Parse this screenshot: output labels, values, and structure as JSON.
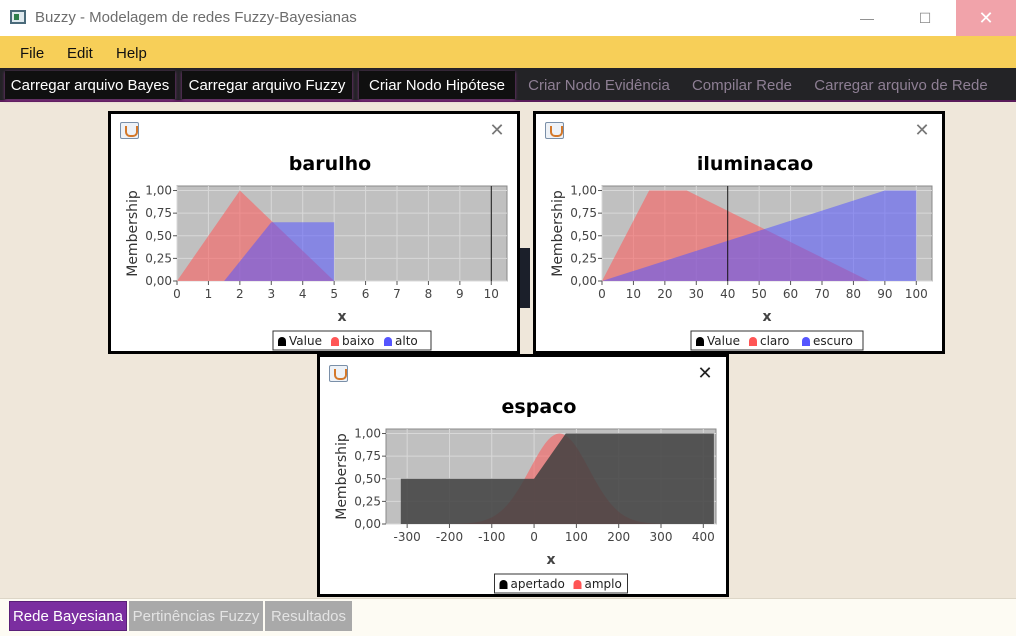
{
  "window": {
    "title": "Buzzy - Modelagem de redes Fuzzy-Bayesianas",
    "minimize": "—",
    "maximize": "☐",
    "close": "✕"
  },
  "menu": [
    {
      "label": "File"
    },
    {
      "label": "Edit"
    },
    {
      "label": "Help"
    }
  ],
  "toolbar": [
    {
      "label": "Carregar arquivo Bayes",
      "enabled": true
    },
    {
      "label": "Carregar arquivo Fuzzy",
      "enabled": true
    },
    {
      "label": "Criar Nodo Hipótese",
      "enabled": true
    },
    {
      "label": "Criar Nodo Evidência",
      "enabled": false
    },
    {
      "label": "Compilar Rede",
      "enabled": false
    },
    {
      "label": "Carregar arquivo de Rede",
      "enabled": false
    }
  ],
  "tabs": [
    {
      "label": "Rede Bayesiana",
      "active": true
    },
    {
      "label": "Pertinências Fuzzy",
      "active": false
    },
    {
      "label": "Resultados",
      "active": false
    }
  ],
  "chart_data": [
    {
      "type": "area",
      "title": "barulho",
      "xlabel": "x",
      "ylabel": "Membership",
      "xlim": [
        0,
        10.5
      ],
      "ylim": [
        0,
        1.05
      ],
      "x_ticks": [
        "0",
        "1",
        "2",
        "3",
        "4",
        "5",
        "6",
        "7",
        "8",
        "9",
        "10"
      ],
      "y_ticks": [
        "0,00",
        "0,25",
        "0,50",
        "0,75",
        "1,00"
      ],
      "value_line": 10,
      "legend": [
        "Value",
        "baixo",
        "alto"
      ],
      "series": [
        {
          "name": "baixo",
          "color": "#ff5555",
          "x": [
            0,
            2,
            5
          ],
          "y": [
            0,
            1,
            0
          ]
        },
        {
          "name": "alto",
          "color": "#5555ff",
          "x": [
            1.5,
            3,
            5,
            5
          ],
          "y": [
            0,
            0.65,
            0.65,
            0
          ]
        }
      ]
    },
    {
      "type": "area",
      "title": "iluminacao",
      "xlabel": "x",
      "ylabel": "Membership",
      "xlim": [
        0,
        105
      ],
      "ylim": [
        0,
        1.05
      ],
      "x_ticks": [
        "0",
        "10",
        "20",
        "30",
        "40",
        "50",
        "60",
        "70",
        "80",
        "90",
        "100"
      ],
      "y_ticks": [
        "0,00",
        "0,25",
        "0,50",
        "0,75",
        "1,00"
      ],
      "value_line": 40,
      "legend": [
        "Value",
        "claro",
        "escuro"
      ],
      "series": [
        {
          "name": "claro",
          "color": "#ff5555",
          "x": [
            0,
            15,
            27,
            85
          ],
          "y": [
            0,
            1,
            1,
            0
          ]
        },
        {
          "name": "escuro",
          "color": "#5555ff",
          "x": [
            0,
            90,
            100,
            100
          ],
          "y": [
            0,
            1,
            1,
            0
          ]
        }
      ]
    },
    {
      "type": "area",
      "title": "espaco",
      "xlabel": "x",
      "ylabel": "Membership",
      "xlim": [
        -350,
        430
      ],
      "ylim": [
        0,
        1.05
      ],
      "x_ticks": [
        "-300",
        "-200",
        "-100",
        "0",
        "100",
        "200",
        "300",
        "400"
      ],
      "y_ticks": [
        "0,00",
        "0,25",
        "0,50",
        "0,75",
        "1,00"
      ],
      "legend": [
        "apertado",
        "amplo"
      ],
      "series": [
        {
          "name": "amplo",
          "color": "#ff5555",
          "mean": 60,
          "sd": 70
        },
        {
          "name": "apertado",
          "color": "#404040",
          "x": [
            -315,
            -315,
            0,
            75,
            425,
            425
          ],
          "y": [
            0,
            0.5,
            0.5,
            1,
            1,
            0
          ]
        }
      ]
    }
  ]
}
